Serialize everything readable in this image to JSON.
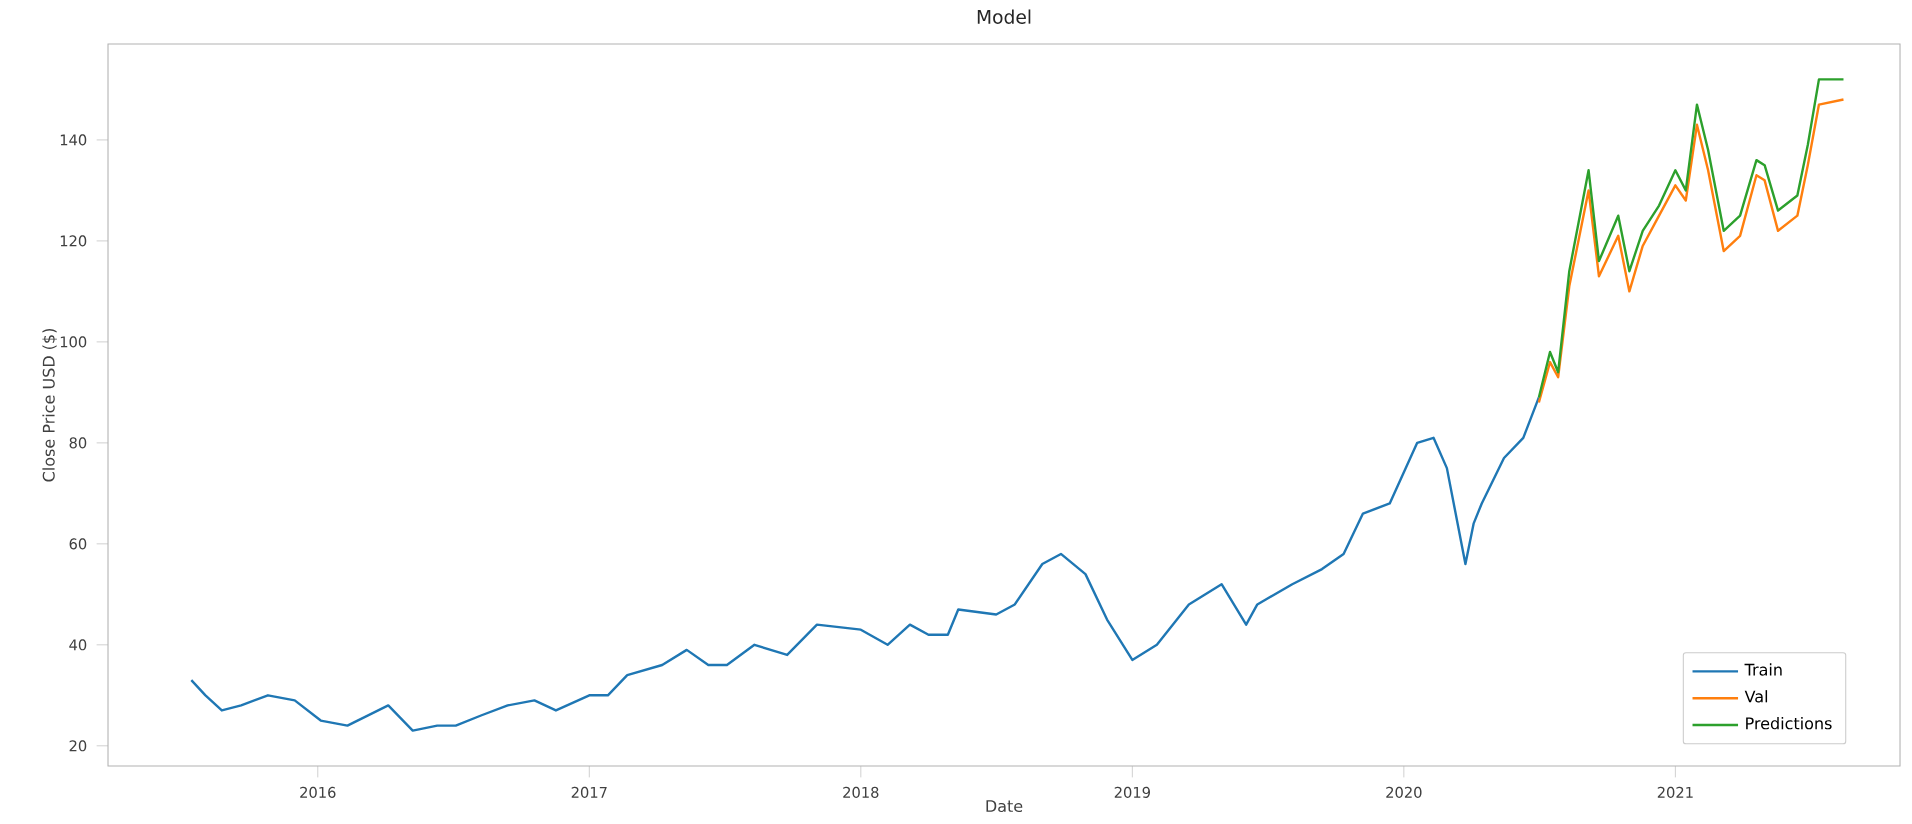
{
  "chart_data": {
    "type": "line",
    "title": "Model",
    "xlabel": "Date",
    "ylabel": "Close Price USD ($)",
    "xlim": [
      "2015-03-25",
      "2021-10-30"
    ],
    "ylim": [
      16,
      159
    ],
    "xticks": [
      {
        "value": "2016-01-01",
        "label": "2016"
      },
      {
        "value": "2017-01-01",
        "label": "2017"
      },
      {
        "value": "2018-01-01",
        "label": "2018"
      },
      {
        "value": "2019-01-01",
        "label": "2019"
      },
      {
        "value": "2020-01-01",
        "label": "2020"
      },
      {
        "value": "2021-01-01",
        "label": "2021"
      }
    ],
    "yticks": [
      20,
      40,
      60,
      80,
      100,
      120,
      140
    ],
    "legend": "bottom right",
    "series": [
      {
        "name": "Train",
        "color": "#1f77b4",
        "x": [
          "2015-07-15",
          "2015-08-03",
          "2015-08-25",
          "2015-09-20",
          "2015-10-26",
          "2015-12-01",
          "2016-01-05",
          "2016-02-10",
          "2016-04-05",
          "2016-05-08",
          "2016-06-10",
          "2016-07-05",
          "2016-08-08",
          "2016-09-13",
          "2016-10-19",
          "2016-11-17",
          "2017-01-01",
          "2017-01-26",
          "2017-02-21",
          "2017-04-09",
          "2017-05-12",
          "2017-06-10",
          "2017-07-05",
          "2017-08-11",
          "2017-09-24",
          "2017-11-03",
          "2018-01-01",
          "2018-02-06",
          "2018-03-08",
          "2018-04-02",
          "2018-04-28",
          "2018-05-12",
          "2018-07-02",
          "2018-07-27",
          "2018-09-02",
          "2018-09-27",
          "2018-10-30",
          "2018-11-28",
          "2019-01-01",
          "2019-02-03",
          "2019-03-18",
          "2019-05-01",
          "2019-06-03",
          "2019-06-18",
          "2019-08-04",
          "2019-09-13",
          "2019-10-12",
          "2019-11-07",
          "2019-12-13",
          "2020-01-19",
          "2020-02-10",
          "2020-02-28",
          "2020-03-24",
          "2020-04-04",
          "2020-04-15",
          "2020-05-15",
          "2020-06-10",
          "2020-07-01"
        ],
        "values": [
          33,
          30,
          27,
          28,
          30,
          29,
          25,
          24,
          28,
          23,
          24,
          24,
          26,
          28,
          29,
          27,
          30,
          30,
          34,
          36,
          39,
          36,
          36,
          40,
          38,
          44,
          43,
          40,
          44,
          42,
          42,
          47,
          46,
          48,
          56,
          58,
          54,
          45,
          37,
          40,
          48,
          52,
          44,
          48,
          52,
          55,
          58,
          66,
          68,
          80,
          81,
          75,
          56,
          64,
          68,
          77,
          81,
          89
        ]
      },
      {
        "name": "Val",
        "color": "#ff7f0e",
        "x": [
          "2020-07-01",
          "2020-07-16",
          "2020-07-27",
          "2020-08-11",
          "2020-09-06",
          "2020-09-20",
          "2020-10-16",
          "2020-10-31",
          "2020-11-18",
          "2020-12-10",
          "2021-01-01",
          "2021-01-15",
          "2021-01-30",
          "2021-02-14",
          "2021-03-07",
          "2021-03-29",
          "2021-04-20",
          "2021-05-01",
          "2021-05-19",
          "2021-06-14",
          "2021-06-28",
          "2021-07-13",
          "2021-08-15"
        ],
        "values": [
          88,
          96,
          93,
          111,
          130,
          113,
          121,
          110,
          119,
          125,
          131,
          128,
          143,
          134,
          118,
          121,
          133,
          132,
          122,
          125,
          135,
          147,
          148
        ]
      },
      {
        "name": "Predictions",
        "color": "#2ca02c",
        "x": [
          "2020-07-01",
          "2020-07-16",
          "2020-07-27",
          "2020-08-11",
          "2020-09-06",
          "2020-09-20",
          "2020-10-16",
          "2020-10-31",
          "2020-11-18",
          "2020-12-10",
          "2021-01-01",
          "2021-01-15",
          "2021-01-30",
          "2021-02-14",
          "2021-03-07",
          "2021-03-29",
          "2021-04-20",
          "2021-05-01",
          "2021-05-19",
          "2021-06-14",
          "2021-06-28",
          "2021-07-13",
          "2021-08-15"
        ],
        "values": [
          89,
          98,
          94,
          114,
          134,
          116,
          125,
          114,
          122,
          127,
          134,
          130,
          147,
          138,
          122,
          125,
          136,
          135,
          126,
          129,
          139,
          152,
          152
        ]
      }
    ]
  }
}
